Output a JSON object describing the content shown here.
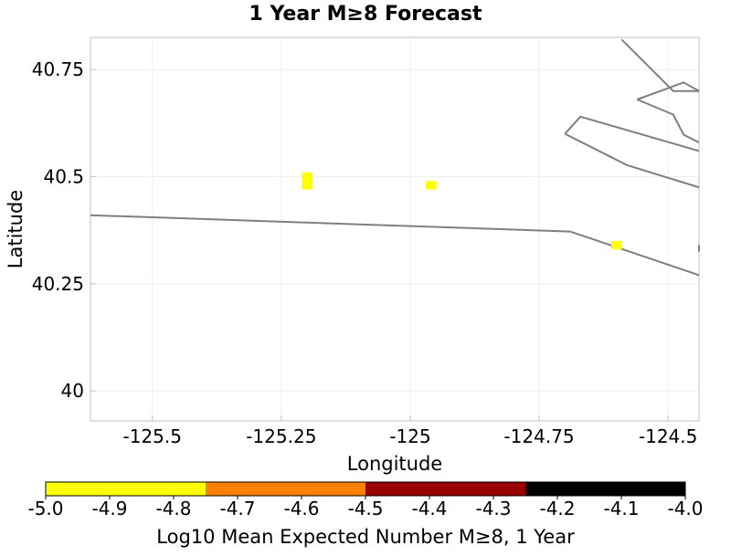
{
  "chart_data": {
    "type": "heatmap",
    "title": "1 Year M≥8 Forecast",
    "xlabel": "Longitude",
    "ylabel": "Latitude",
    "xlim": [
      -125.62,
      -124.44
    ],
    "ylim": [
      39.93,
      40.825
    ],
    "xticks": [
      {
        "value": -125.5,
        "label": "-125.5"
      },
      {
        "value": -125.25,
        "label": "-125.25"
      },
      {
        "value": -125.0,
        "label": "-125"
      },
      {
        "value": -124.75,
        "label": "-124.75"
      },
      {
        "value": -124.5,
        "label": "-124.5"
      }
    ],
    "yticks": [
      {
        "value": 40.75,
        "label": "40.75"
      },
      {
        "value": 40.5,
        "label": "40.5"
      },
      {
        "value": 40.25,
        "label": "40.25"
      },
      {
        "value": 40.0,
        "label": "40"
      }
    ],
    "cells": [
      {
        "lon": [
          -125.21,
          -125.19
        ],
        "lat": [
          40.47,
          40.51
        ],
        "value": -4.95
      },
      {
        "lon": [
          -124.97,
          -124.95
        ],
        "lat": [
          40.47,
          40.49
        ],
        "value": -4.95
      },
      {
        "lon": [
          -124.61,
          -124.59
        ],
        "lat": [
          40.33,
          40.35
        ],
        "value": -4.95
      }
    ],
    "fault_lines": [
      [
        [
          -125.62,
          40.41
        ],
        [
          -124.69,
          40.372
        ],
        [
          -124.44,
          40.27
        ]
      ],
      [
        [
          -124.7,
          40.6
        ],
        [
          -124.58,
          40.527
        ],
        [
          -124.44,
          40.475
        ]
      ],
      [
        [
          -124.59,
          40.82
        ],
        [
          -124.49,
          40.7
        ],
        [
          -124.44,
          40.7
        ]
      ],
      [
        [
          -124.56,
          40.68
        ],
        [
          -124.49,
          40.645
        ],
        [
          -124.47,
          40.598
        ],
        [
          -124.44,
          40.58
        ]
      ],
      [
        [
          -124.7,
          40.6
        ],
        [
          -124.67,
          40.64
        ],
        [
          -124.44,
          40.56
        ]
      ],
      [
        [
          -124.56,
          40.68
        ],
        [
          -124.47,
          40.72
        ],
        [
          -124.44,
          40.7
        ]
      ],
      [
        [
          -124.44,
          40.34
        ],
        [
          -124.44,
          40.325
        ]
      ]
    ],
    "colorbar": {
      "label": "Log10 Mean Expected Number M≥8, 1 Year",
      "range": [
        -5.0,
        -4.0
      ],
      "ticks": [
        "-5.0",
        "-4.9",
        "-4.8",
        "-4.7",
        "-4.6",
        "-4.5",
        "-4.4",
        "-4.3",
        "-4.2",
        "-4.1",
        "-4.0"
      ],
      "bins": [
        {
          "from": -5.0,
          "to": -4.75,
          "color": "#ffff00"
        },
        {
          "from": -4.75,
          "to": -4.5,
          "color": "#ff7f00"
        },
        {
          "from": -4.5,
          "to": -4.25,
          "color": "#990000"
        },
        {
          "from": -4.25,
          "to": -4.0,
          "color": "#000000"
        }
      ]
    }
  }
}
